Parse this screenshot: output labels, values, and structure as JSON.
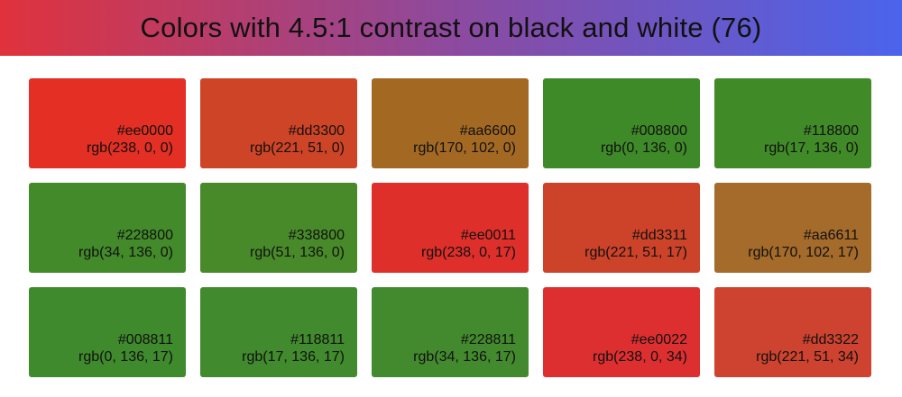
{
  "header": {
    "title": "Colors with 4.5:1 contrast on black and white (76)"
  },
  "swatches": [
    {
      "hex": "#ee0000",
      "rgb": "rgb(238, 0, 0)",
      "color": "#e32f24"
    },
    {
      "hex": "#dd3300",
      "rgb": "rgb(221, 51, 0)",
      "color": "#ce4426"
    },
    {
      "hex": "#aa6600",
      "rgb": "rgb(170, 102, 0)",
      "color": "#a36923"
    },
    {
      "hex": "#008800",
      "rgb": "rgb(0, 136, 0)",
      "color": "#3f8a28"
    },
    {
      "hex": "#118800",
      "rgb": "rgb(17, 136, 0)",
      "color": "#418a28"
    },
    {
      "hex": "#228800",
      "rgb": "rgb(34, 136, 0)",
      "color": "#438a2a"
    },
    {
      "hex": "#338800",
      "rgb": "rgb(51, 136, 0)",
      "color": "#488a2a"
    },
    {
      "hex": "#ee0011",
      "rgb": "rgb(238, 0, 17)",
      "color": "#df2f2b"
    },
    {
      "hex": "#dd3311",
      "rgb": "rgb(221, 51, 17)",
      "color": "#cd432a"
    },
    {
      "hex": "#aa6611",
      "rgb": "rgb(170, 102, 17)",
      "color": "#a56b2a"
    },
    {
      "hex": "#008811",
      "rgb": "rgb(0, 136, 17)",
      "color": "#3f8a2c"
    },
    {
      "hex": "#118811",
      "rgb": "rgb(17, 136, 17)",
      "color": "#418a2d"
    },
    {
      "hex": "#228811",
      "rgb": "rgb(34, 136, 17)",
      "color": "#438a2e"
    },
    {
      "hex": "#ee0022",
      "rgb": "rgb(238, 0, 34)",
      "color": "#de2f30"
    },
    {
      "hex": "#dd3322",
      "rgb": "rgb(221, 51, 34)",
      "color": "#cd432f"
    }
  ]
}
